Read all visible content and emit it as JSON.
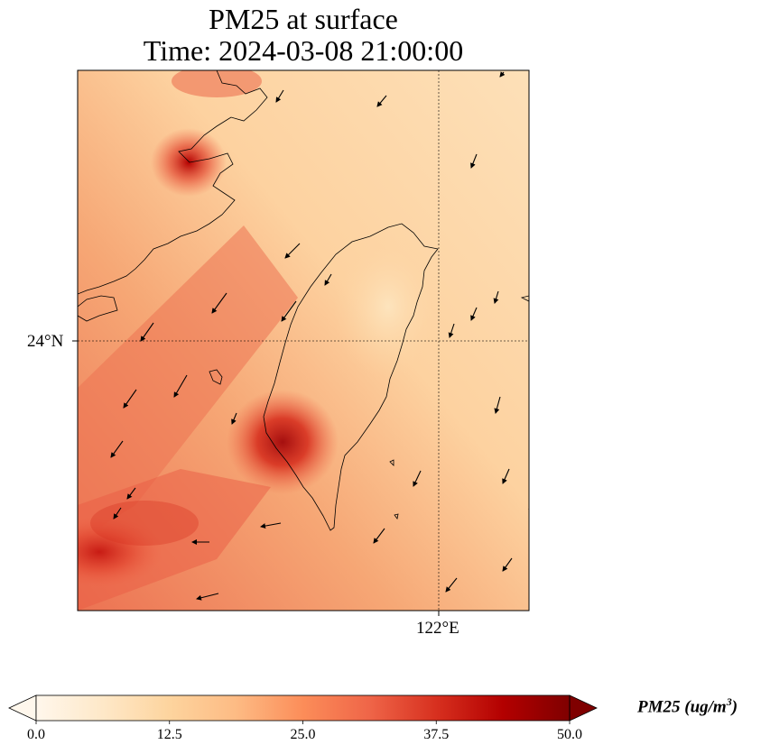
{
  "title": {
    "line1": "PM25 at surface",
    "line2": "Time: 2024-03-08 21:00:00"
  },
  "map": {
    "projection": "plate carree",
    "gridlines": {
      "latitudes": [
        24
      ],
      "longitudes": [
        122
      ],
      "style": "dotted"
    },
    "lat_tick_label": "24°N",
    "lon_tick_label": "122°E",
    "coastline_color": "#000000",
    "features": [
      "Taiwan coastline",
      "Fujian coastline",
      "Penghu islands"
    ],
    "hotspots": [
      {
        "region": "southwest Taiwan coast",
        "level": 48
      },
      {
        "region": "Fujian coast near Fuzhou",
        "level": 44
      },
      {
        "region": "Taiwan Strait southwest",
        "level": 40
      }
    ],
    "wind_vectors": "arrows mostly pointing southwest"
  },
  "colorbar": {
    "cmap": "OrRd",
    "min": 0,
    "max": 50,
    "extend": "both",
    "ticks": [
      "0.0",
      "12.5",
      "25.0",
      "37.5",
      "50.0"
    ],
    "label_main": "PM25 (ug/m",
    "label_sup": "3",
    "label_end": ")"
  }
}
